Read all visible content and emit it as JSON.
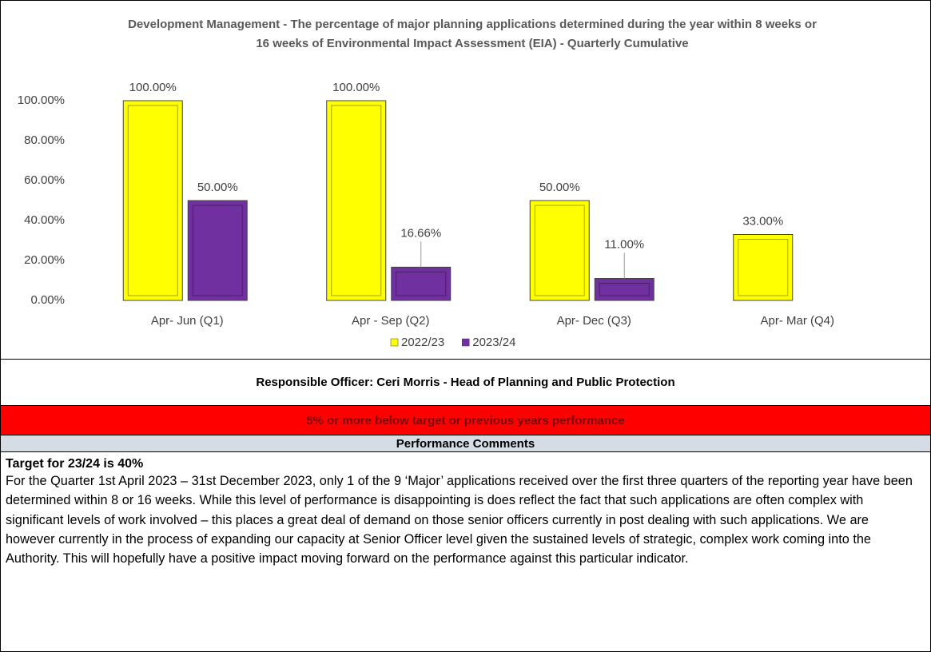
{
  "chart_data": {
    "type": "bar",
    "title": "Development Management - The percentage of major planning applications determined during the year within 8 weeks or 16 weeks of Environmental Impact Assessment (EIA)  - Quarterly Cumulative",
    "categories": [
      "Apr- Jun  (Q1)",
      "Apr - Sep  (Q2)",
      "Apr- Dec  (Q3)",
      "Apr- Mar  (Q4)"
    ],
    "series": [
      {
        "name": "2022/23",
        "color": "#ffff00",
        "values": [
          100,
          100,
          50,
          33
        ],
        "value_labels": [
          "100.00%",
          "100.00%",
          "50.00%",
          "33.00%"
        ]
      },
      {
        "name": "2023/24",
        "color": "#7030a0",
        "values": [
          50,
          16.66,
          11,
          null
        ],
        "value_labels": [
          "50.00%",
          "16.66%",
          "11.00%",
          null
        ]
      }
    ],
    "ylim": [
      0,
      100
    ],
    "yticks": [
      {
        "value": 0,
        "label": "0.00%"
      },
      {
        "value": 20,
        "label": "20.00%"
      },
      {
        "value": 40,
        "label": "40.00%"
      },
      {
        "value": 60,
        "label": "60.00%"
      },
      {
        "value": 80,
        "label": "80.00%"
      },
      {
        "value": 100,
        "label": "100.00%"
      }
    ],
    "legend": "bottom"
  },
  "officer": "Responsible Officer:  Ceri Morris - Head of Planning and Public Protection",
  "status": "5% or more below target or previous years performance",
  "comments_heading": "Performance Comments",
  "target": "Target for 23/24 is 40%",
  "comment": "For the Quarter 1st April 2023 – 31st December 2023, only 1 of the 9 ‘Major’ applications received over the first three quarters of the reporting year have been determined within 8 or 16 weeks. While this level of performance is disappointing is does reflect the fact that such applications are often complex with significant levels of work involved – this places a great deal of demand on those senior officers currently in post dealing with such applications. We are however currently in the process of expanding our capacity at Senior Officer level given the sustained levels of strategic, complex work coming into the Authority. This will hopefully have a positive impact moving forward on the performance against this particular indicator."
}
